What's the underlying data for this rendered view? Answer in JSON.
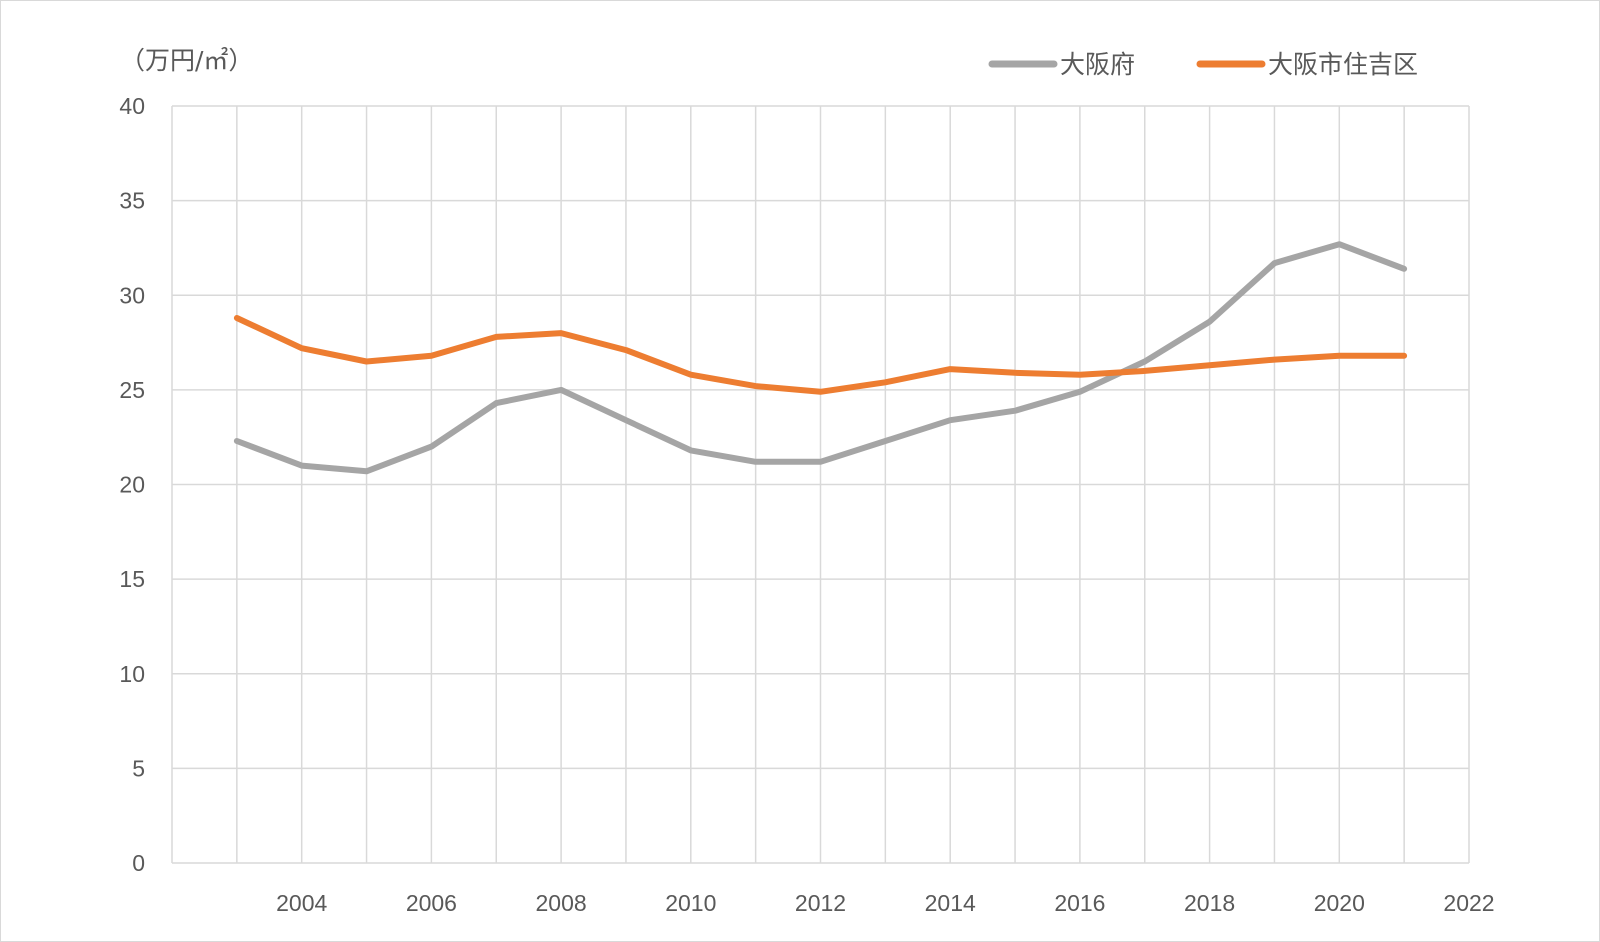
{
  "chart_data": {
    "type": "line",
    "unit_label": "（万円/㎡）",
    "ylim": [
      0,
      40
    ],
    "y_ticks": [
      0,
      5,
      10,
      15,
      20,
      25,
      30,
      35,
      40
    ],
    "xlim": [
      2002,
      2022
    ],
    "x_ticks": [
      2004,
      2006,
      2008,
      2010,
      2012,
      2014,
      2016,
      2018,
      2020,
      2022
    ],
    "x": [
      2003,
      2004,
      2005,
      2006,
      2007,
      2008,
      2009,
      2010,
      2011,
      2012,
      2013,
      2014,
      2015,
      2016,
      2017,
      2018,
      2019,
      2020,
      2021
    ],
    "grid": true,
    "legend_position": "top-right",
    "series": [
      {
        "name": "大阪府",
        "color": "#a5a5a5",
        "values": [
          22.3,
          21.0,
          20.7,
          22.0,
          24.3,
          25.0,
          23.4,
          21.8,
          21.2,
          21.2,
          22.3,
          23.4,
          23.9,
          24.9,
          26.5,
          28.6,
          31.7,
          32.7,
          31.4
        ]
      },
      {
        "name": "大阪市住吉区",
        "color": "#ed7d31",
        "values": [
          28.8,
          27.2,
          26.5,
          26.8,
          27.8,
          28.0,
          27.1,
          25.8,
          25.2,
          24.9,
          25.4,
          26.1,
          25.9,
          25.8,
          26.0,
          26.3,
          26.6,
          26.8,
          26.8
        ]
      }
    ]
  }
}
